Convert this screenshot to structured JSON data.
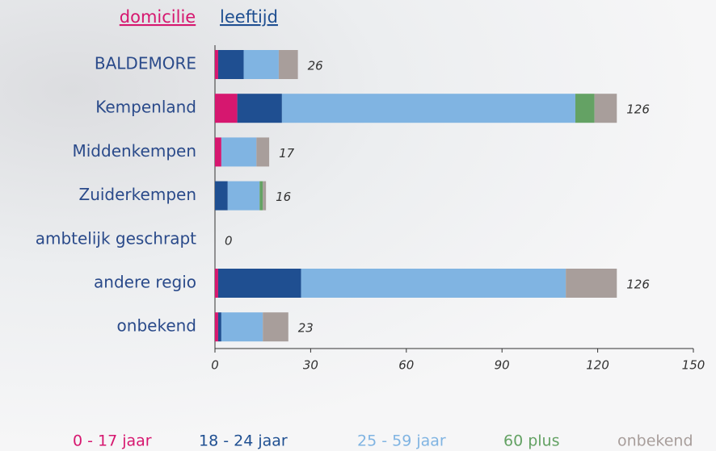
{
  "tabs": [
    "domicilie",
    "leeftijd"
  ],
  "chart_data": {
    "type": "bar",
    "orientation": "horizontal",
    "stacked": true,
    "categories": [
      "BALDEMORE",
      "Kempenland",
      "Middenkempen",
      "Zuiderkempen",
      "ambtelijk geschrapt",
      "andere regio",
      "onbekend"
    ],
    "series": [
      {
        "name": "0 - 17 jaar",
        "color": "#d6176f",
        "values": [
          1,
          7,
          2,
          0,
          0,
          1,
          1
        ]
      },
      {
        "name": "18 - 24 jaar",
        "color": "#1f4f91",
        "values": [
          8,
          14,
          0,
          4,
          0,
          26,
          1
        ]
      },
      {
        "name": "25 - 59 jaar",
        "color": "#80b4e2",
        "values": [
          11,
          92,
          11,
          10,
          0,
          83,
          13
        ]
      },
      {
        "name": "60 plus",
        "color": "#64a264",
        "values": [
          0,
          6,
          0,
          1,
          0,
          0,
          0
        ]
      },
      {
        "name": "onbekend",
        "color": "#a89e9b",
        "values": [
          6,
          7,
          4,
          1,
          0,
          16,
          8
        ]
      }
    ],
    "totals": [
      26,
      126,
      17,
      16,
      0,
      126,
      23
    ],
    "xlim": [
      0,
      150
    ],
    "xticks": [
      0,
      30,
      60,
      90,
      120,
      150
    ]
  }
}
